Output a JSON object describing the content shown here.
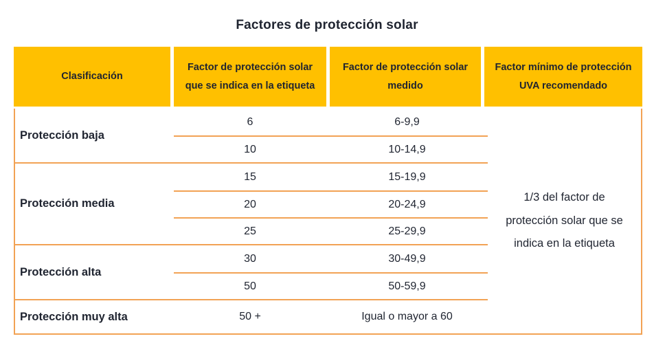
{
  "title": "Factores de protección solar",
  "colors": {
    "header_bg": "#FFC000",
    "border_line": "#F2A254",
    "text": "#1f2430"
  },
  "table": {
    "headers": [
      "Clasificación",
      "Factor de protección solar que se indica en la etiqueta",
      "Factor de protección solar medido",
      "Factor mínimo de protección UVA recomendado"
    ],
    "groups": [
      {
        "classification": "Protección baja",
        "rows": [
          {
            "label": "6",
            "measured": "6-9,9"
          },
          {
            "label": "10",
            "measured": "10-14,9"
          }
        ]
      },
      {
        "classification": "Protección media",
        "rows": [
          {
            "label": "15",
            "measured": "15-19,9"
          },
          {
            "label": "20",
            "measured": "20-24,9"
          },
          {
            "label": "25",
            "measured": "25-29,9"
          }
        ]
      },
      {
        "classification": "Protección alta",
        "rows": [
          {
            "label": "30",
            "measured": "30-49,9"
          },
          {
            "label": "50",
            "measured": "50-59,9"
          }
        ]
      },
      {
        "classification": "Protección muy alta",
        "rows": [
          {
            "label": "50 +",
            "measured": "Igual o mayor a 60"
          }
        ]
      }
    ],
    "uva_note": "1/3 del factor de protección solar que se indica en la etiqueta"
  }
}
